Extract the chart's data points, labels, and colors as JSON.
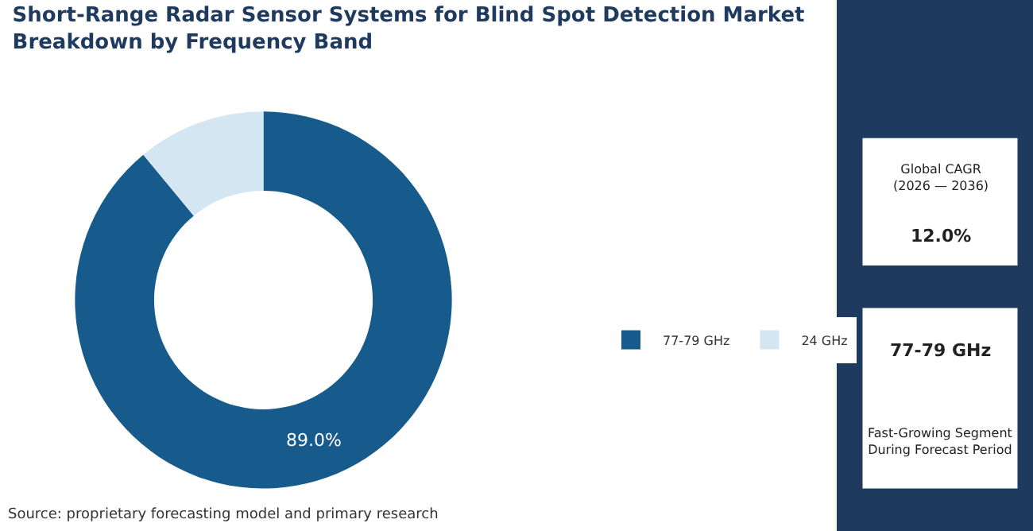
{
  "chart_data": [
    {
      "type": "donut",
      "title": "Short-Range Radar Sensor Systems for Blind Spot Detection Market Breakdown by Frequency Band",
      "categories": [
        "77-79 GHz",
        "24 GHz"
      ],
      "values": [
        89.0,
        11.0
      ],
      "colors": [
        "#175a8c",
        "#d5e6f3"
      ],
      "value_labels": [
        "89.0%",
        null
      ],
      "legend": "right",
      "annotations": [
        "Source: proprietary forecasting model and primary research"
      ]
    },
    {
      "type": "other",
      "annotations": [
        "Global CAGR\n(2026 — 2036)",
        "12.0%",
        "77-79 GHz",
        "Fast-Growing Segment\nDuring Forecast Period"
      ]
    }
  ]
}
